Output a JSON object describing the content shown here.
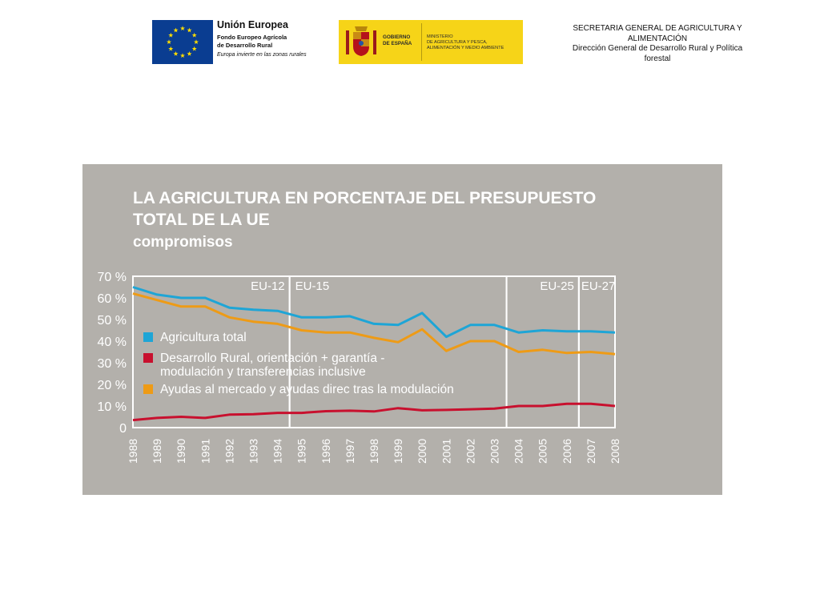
{
  "header": {
    "eu": {
      "title": "Unión Europea",
      "fund_line1": "Fondo Europeo Agrícola",
      "fund_line2": "de Desarrollo Rural",
      "motto": "Europa invierte en las zonas rurales"
    },
    "spain": {
      "gobierno_line1": "GOBIERNO",
      "gobierno_line2": "DE ESPAÑA",
      "ministerio_line1": "MINISTERIO",
      "ministerio_line2": "DE AGRICULTURA Y PESCA,",
      "ministerio_line3": "ALIMENTACIÓN Y MEDIO AMBIENTE"
    },
    "secretaria": {
      "line1": "SECRETARIA GENERAL DE AGRICULTURA Y",
      "line2": "ALIMENTACIÓN",
      "line3": "Dirección General de Desarrollo Rural y  Política",
      "line4": "forestal"
    }
  },
  "colors": {
    "panel": "#b3b0ab",
    "agricultura_total": "#1ea5d6",
    "desarrollo_rural": "#c8102e",
    "ayudas_mercado": "#ee9b16",
    "eu_blue": "#0a3d91",
    "spain_yellow": "#f6d418"
  },
  "icons": [
    "eu-flag-icon",
    "spain-crest-icon"
  ],
  "chart_data": {
    "type": "line",
    "title_line1": "LA AGRICULTURA EN PORCENTAJE DEL PRESUPUESTO",
    "title_line2": "TOTAL DE LA UE",
    "subtitle": "compromisos",
    "x": [
      "1988",
      "1989",
      "1990",
      "1991",
      "1992",
      "1993",
      "1994",
      "1995",
      "1996",
      "1997",
      "1998",
      "1999",
      "2000",
      "2001",
      "2002",
      "2003",
      "2004",
      "2005",
      "2006",
      "2007",
      "2008"
    ],
    "y_ticks": [
      "0",
      "10 %",
      "20 %",
      "30 %",
      "40 %",
      "50 %",
      "60 %",
      "70 %"
    ],
    "ylim": [
      0,
      70
    ],
    "series": [
      {
        "name": "Agricultura total",
        "color": "#1ea5d6",
        "values": [
          65,
          61.5,
          60,
          60,
          55.5,
          54.5,
          54,
          51,
          51,
          51.5,
          48,
          47.5,
          53,
          42,
          47.5,
          47.5,
          44,
          45,
          44.5,
          44.5,
          44
        ]
      },
      {
        "name": "Desarrollo Rural, orientación + garantía - modulación y transferencias inclusive",
        "name_line1": "Desarrollo Rural, orientación + garantía -",
        "name_line2": "modulación y transferencias inclusive",
        "color": "#c8102e",
        "values": [
          3.5,
          4.5,
          5,
          4.5,
          6,
          6.2,
          6.8,
          6.8,
          7.6,
          7.8,
          7.5,
          9,
          8,
          8.2,
          8.5,
          8.8,
          10,
          10,
          11,
          11,
          10
        ]
      },
      {
        "name": "Ayudas al mercado y ayudas direc tras la modulación",
        "color": "#ee9b16",
        "values": [
          62,
          59,
          56,
          56,
          51,
          49,
          48,
          45,
          44,
          44,
          41.5,
          39.5,
          45.5,
          35.5,
          40,
          40,
          35,
          36,
          34.5,
          35,
          34
        ]
      }
    ],
    "periods": [
      {
        "label": "EU-12",
        "from": "1988",
        "to": "1994"
      },
      {
        "label": "EU-15",
        "from": "1995",
        "to": "2003"
      },
      {
        "label": "EU-25",
        "from": "2004",
        "to": "2006"
      },
      {
        "label": "EU-27",
        "from": "2007",
        "to": "2008"
      }
    ],
    "legend_position": "inside-left",
    "grid": false
  }
}
